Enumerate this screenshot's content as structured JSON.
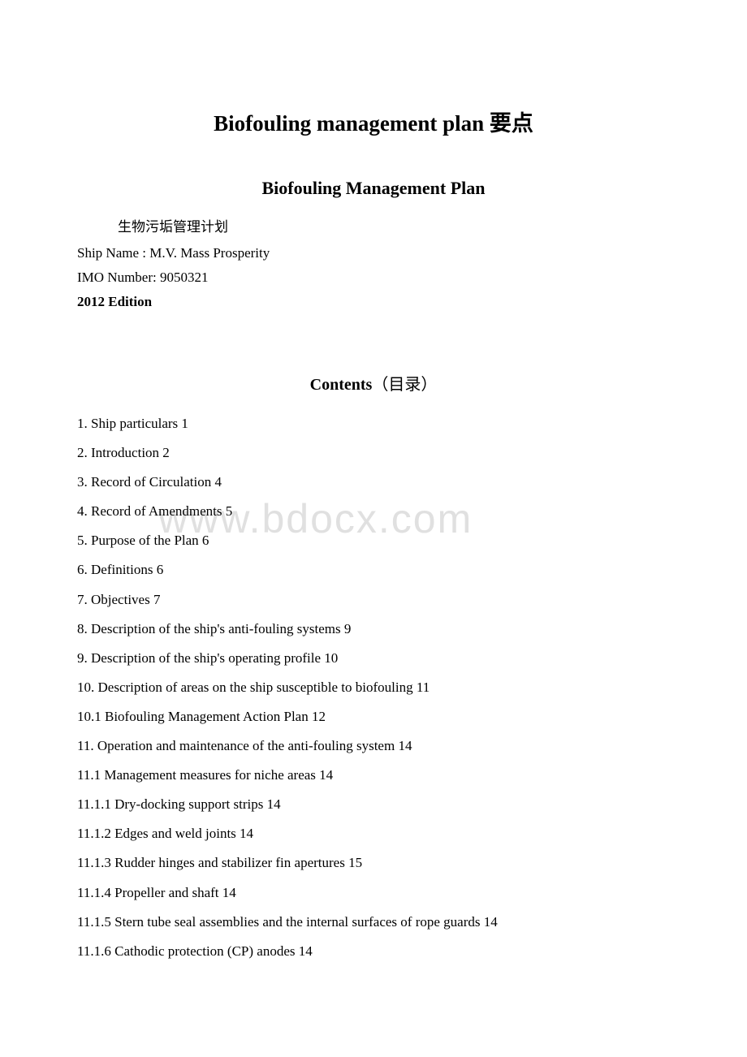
{
  "watermark": "www.bdocx.com",
  "title": "Biofouling management plan 要点",
  "subtitle": "Biofouling Management Plan",
  "chineseLabel": "生物污垢管理计划",
  "shipName": "Ship Name : M.V. Mass Prosperity",
  "imoNumber": "IMO Number: 9050321",
  "edition": "2012 Edition",
  "contentsTitle": "Contents",
  "contentsTitleChinese": "（目录）",
  "toc": [
    "1. Ship particulars 1",
    "2. Introduction 2",
    "3. Record of Circulation 4",
    "4. Record of Amendments 5",
    "5. Purpose of the Plan 6",
    "6. Definitions 6",
    "7. Objectives 7",
    "8. Description of the ship's anti-fouling systems 9",
    "9. Description of the ship's operating profile 10",
    "10. Description of areas on the ship susceptible to biofouling 11",
    "10.1 Biofouling Management Action Plan 12",
    "11. Operation and maintenance of the anti-fouling system 14",
    "11.1 Management measures for niche areas 14",
    "11.1.1 Dry-docking support strips 14",
    "11.1.2 Edges and weld joints 14",
    "11.1.3 Rudder hinges and stabilizer fin apertures 15",
    "11.1.4 Propeller and shaft 14",
    "11.1.5 Stern tube seal assemblies and the internal surfaces of rope guards 14",
    "11.1.6 Cathodic protection (CP) anodes 14"
  ]
}
